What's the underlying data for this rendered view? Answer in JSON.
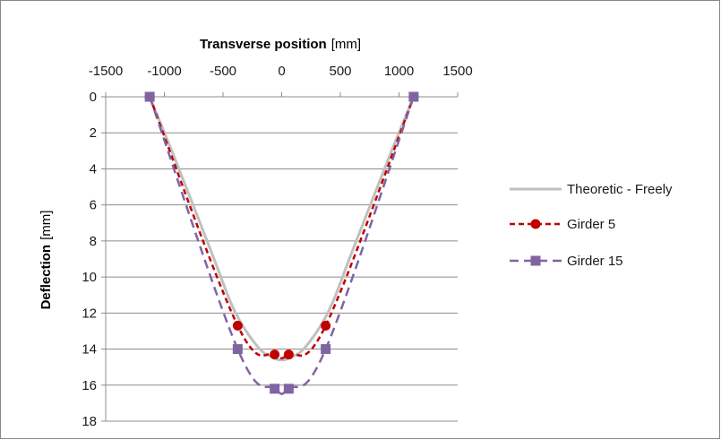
{
  "chart_data": {
    "type": "line",
    "x_axis": {
      "title_bold": "Transverse position",
      "title_unit": "[mm]",
      "min": -1500,
      "max": 1500,
      "ticks": [
        -1500,
        -1000,
        -500,
        0,
        500,
        1000,
        1500
      ],
      "tick_labels": [
        "-1500",
        "-1000",
        "-500",
        "0",
        "500",
        "1000",
        "1500"
      ],
      "position": "top"
    },
    "y_axis": {
      "title_bold": "Deflection",
      "title_unit": "[mm]",
      "min": 0,
      "max": 18,
      "ticks": [
        0,
        2,
        4,
        6,
        8,
        10,
        12,
        14,
        16,
        18
      ],
      "tick_labels": [
        "0",
        "2",
        "4",
        "6",
        "8",
        "10",
        "12",
        "14",
        "16",
        "18"
      ],
      "reversed": true
    },
    "grid": "horizontal",
    "legend_position": "right",
    "series": [
      {
        "name": "Theoretic - Freely",
        "color": "#c0c0c0",
        "dash": "solid",
        "marker": "none",
        "x": [
          -1125,
          -900,
          -600,
          -400,
          -200,
          -60,
          0,
          60,
          200,
          400,
          600,
          900,
          1125
        ],
        "y": [
          0,
          3.6,
          8.6,
          11.9,
          13.9,
          14.5,
          14.6,
          14.5,
          13.9,
          11.9,
          8.6,
          3.6,
          0
        ]
      },
      {
        "name": "Girder 5",
        "color": "#c00000",
        "dash": "dashed",
        "marker": "circle",
        "x": [
          -1125,
          -375,
          -60,
          60,
          375,
          1125
        ],
        "y": [
          0,
          12.7,
          14.3,
          14.3,
          12.7,
          0
        ]
      },
      {
        "name": "Girder 15",
        "color": "#8064a2",
        "dash": "dashed",
        "marker": "square",
        "x": [
          -1125,
          -375,
          -60,
          60,
          375,
          1125
        ],
        "y": [
          0,
          14.0,
          16.2,
          16.2,
          14.0,
          0
        ]
      }
    ]
  }
}
